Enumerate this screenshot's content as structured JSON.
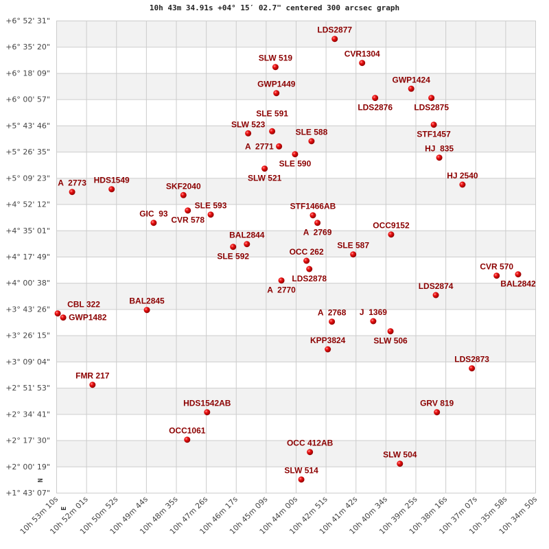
{
  "chart_data": {
    "type": "scatter",
    "title": "10h 43m 34.91s +04° 15′ 02.7\" centered 300 arcsec graph",
    "xlabel": "",
    "ylabel": "",
    "x_unit": "hours (RA)",
    "y_unit": "degrees (Dec)",
    "xlim": [
      10.886111,
      10.580556
    ],
    "ylim": [
      1.718611,
      6.875278
    ],
    "x_reversed": true,
    "grid": true,
    "banded_background": true,
    "legend": "none",
    "colors": {
      "point": "#dd0000",
      "label": "#8b0000",
      "band": "#f2f2f2",
      "grid": "#cccccc"
    },
    "compass": {
      "north": "N",
      "east": "E"
    },
    "x_ticks": [
      "10h 53m 10s",
      "10h 52m 01s",
      "10h 50m 52s",
      "10h 49m 44s",
      "10h 48m 35s",
      "10h 47m 26s",
      "10h 46m 17s",
      "10h 45m 09s",
      "10h 44m 00s",
      "10h 42m 51s",
      "10h 41m 42s",
      "10h 40m 34s",
      "10h 39m 25s",
      "10h 38m 16s",
      "10h 37m 07s",
      "10h 35m 58s",
      "10h 34m 50s"
    ],
    "y_ticks": [
      "+6° 52' 31\"",
      "+6° 35' 20\"",
      "+6° 18' 09\"",
      "+6° 00' 57\"",
      "+5° 43' 46\"",
      "+5° 26' 35\"",
      "+5° 09' 23\"",
      "+4° 52' 12\"",
      "+4° 35' 01\"",
      "+4° 17' 49\"",
      "+4° 00' 38\"",
      "+3° 43' 26\"",
      "+3° 26' 15\"",
      "+3° 09' 04\"",
      "+2° 51' 53\"",
      "+2° 34' 41\"",
      "+2° 17' 30\"",
      "+2° 00' 19\"",
      "+1° 43' 07\""
    ],
    "points": [
      {
        "name": "LDS2877",
        "ra": 10.7085,
        "dec": 6.6752
      },
      {
        "name": "CVR1304",
        "ra": 10.691,
        "dec": 6.4128
      },
      {
        "name": "GWP1424",
        "ra": 10.6597,
        "dec": 6.131
      },
      {
        "name": "LDS2876",
        "ra": 10.6827,
        "dec": 6.0306
      },
      {
        "name": "LDS2875",
        "ra": 10.6468,
        "dec": 6.0306
      },
      {
        "name": "STF1457",
        "ra": 10.6453,
        "dec": 5.7383
      },
      {
        "name": "SLE 588",
        "ra": 10.7233,
        "dec": 5.5584
      },
      {
        "name": "SLE 590",
        "ra": 10.7338,
        "dec": 5.416
      },
      {
        "name": "HJ  835",
        "ra": 10.6418,
        "dec": 5.3785
      },
      {
        "name": "A  2771",
        "ra": 10.744,
        "dec": 5.5014
      },
      {
        "name": "GWP1449",
        "ra": 10.7457,
        "dec": 6.083
      },
      {
        "name": "SLW 519",
        "ra": 10.7463,
        "dec": 6.3678
      },
      {
        "name": "SLW 523",
        "ra": 10.7637,
        "dec": 5.6438
      },
      {
        "name": "SLE 591",
        "ra": 10.7484,
        "dec": 5.6663
      },
      {
        "name": "SLW 521",
        "ra": 10.7532,
        "dec": 5.2586
      },
      {
        "name": "HJ 2540",
        "ra": 10.627,
        "dec": 5.0839
      },
      {
        "name": "STF1466AB",
        "ra": 10.7224,
        "dec": 4.7489
      },
      {
        "name": "A  2769",
        "ra": 10.7195,
        "dec": 4.6665
      },
      {
        "name": "OCC9152",
        "ra": 10.6725,
        "dec": 4.539
      },
      {
        "name": "SLE 587",
        "ra": 10.6967,
        "dec": 4.3217
      },
      {
        "name": "OCC 262",
        "ra": 10.7265,
        "dec": 4.252
      },
      {
        "name": "LDS2878",
        "ra": 10.7247,
        "dec": 4.162
      },
      {
        "name": "A  2770",
        "ra": 10.7425,
        "dec": 4.0369
      },
      {
        "name": "CVR 570",
        "ra": 10.6052,
        "dec": 4.0893
      },
      {
        "name": "BAL2842",
        "ra": 10.5915,
        "dec": 4.1043
      },
      {
        "name": "LDS2874",
        "ra": 10.644,
        "dec": 3.8772
      },
      {
        "name": "A  2768",
        "ra": 10.7103,
        "dec": 3.5872
      },
      {
        "name": "J  1369",
        "ra": 10.6839,
        "dec": 3.5924
      },
      {
        "name": "SLW 506",
        "ra": 10.6729,
        "dec": 3.4822
      },
      {
        "name": "A  2773",
        "ra": 10.876,
        "dec": 5.0038
      },
      {
        "name": "HDS1549",
        "ra": 10.8508,
        "dec": 5.0337
      },
      {
        "name": "SKF2040",
        "ra": 10.805,
        "dec": 4.9692
      },
      {
        "name": "CVR 578",
        "ra": 10.8022,
        "dec": 4.8014
      },
      {
        "name": "SLE 593",
        "ra": 10.7876,
        "dec": 4.7564
      },
      {
        "name": "GIC  93",
        "ra": 10.824,
        "dec": 4.6665
      },
      {
        "name": "SLE 592",
        "ra": 10.7733,
        "dec": 4.4041
      },
      {
        "name": "BAL2844",
        "ra": 10.7645,
        "dec": 4.4341
      },
      {
        "name": "CBL 322",
        "ra": 10.8852,
        "dec": 3.6771
      },
      {
        "name": "GWP1482",
        "ra": 10.8817,
        "dec": 3.6321
      },
      {
        "name": "BAL2845",
        "ra": 10.8283,
        "dec": 3.7146
      },
      {
        "name": "FMR 217",
        "ra": 10.863,
        "dec": 2.8976
      },
      {
        "name": "HDS1542AB",
        "ra": 10.7899,
        "dec": 2.5978
      },
      {
        "name": "OCC1061",
        "ra": 10.8026,
        "dec": 2.298
      },
      {
        "name": "KPP3824",
        "ra": 10.7129,
        "dec": 3.2851
      },
      {
        "name": "LDS2873",
        "ra": 10.621,
        "dec": 3.0775
      },
      {
        "name": "GRV 819",
        "ra": 10.6433,
        "dec": 2.5978
      },
      {
        "name": "OCC 412AB",
        "ra": 10.7243,
        "dec": 2.1631
      },
      {
        "name": "SLW 504",
        "ra": 10.6669,
        "dec": 2.0356
      },
      {
        "name": "SLW 514",
        "ra": 10.7298,
        "dec": 1.8633
      }
    ]
  }
}
